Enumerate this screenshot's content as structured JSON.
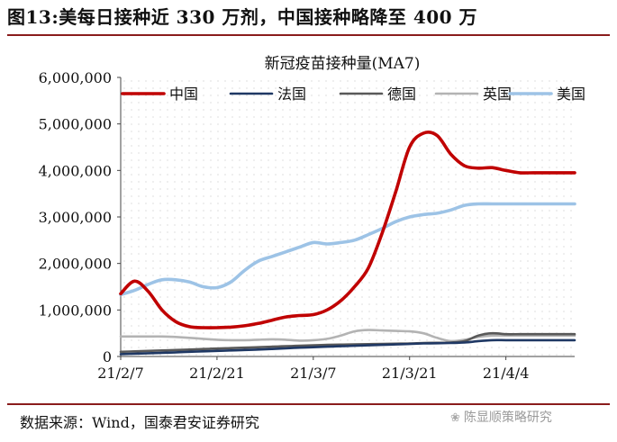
{
  "figure_title": "图13:美每日接种近 330 万剂，中国接种略降至 400 万",
  "source_text": "数据来源：Wind，国泰君安证券研究",
  "watermark_text": "陈显顺策略研究",
  "chart_data": {
    "type": "line",
    "title": "新冠疫苗接种量(MA7)",
    "xlabel": "",
    "ylabel": "",
    "x": [
      "2021-02-07",
      "2021-02-09",
      "2021-02-11",
      "2021-02-13",
      "2021-02-15",
      "2021-02-17",
      "2021-02-19",
      "2021-02-21",
      "2021-02-23",
      "2021-02-25",
      "2021-02-27",
      "2021-03-01",
      "2021-03-03",
      "2021-03-05",
      "2021-03-07",
      "2021-03-09",
      "2021-03-11",
      "2021-03-13",
      "2021-03-15",
      "2021-03-17",
      "2021-03-19",
      "2021-03-21",
      "2021-03-23",
      "2021-03-25",
      "2021-03-27",
      "2021-03-29",
      "2021-03-31",
      "2021-04-02",
      "2021-04-04",
      "2021-04-06",
      "2021-04-08",
      "2021-04-10",
      "2021-04-12",
      "2021-04-14"
    ],
    "xticks": [
      "21/2/7",
      "21/2/21",
      "21/3/7",
      "21/3/21",
      "21/4/4"
    ],
    "ylim": [
      0,
      6000000
    ],
    "yticks": [
      "0",
      "1,000,000",
      "2,000,000",
      "3,000,000",
      "4,000,000",
      "5,000,000",
      "6,000,000"
    ],
    "legend_position": "top",
    "grid": "dotted background",
    "series": [
      {
        "name": "中国",
        "color": "#c00000",
        "width": 3.6,
        "values": [
          1350000,
          1620000,
          1400000,
          1000000,
          750000,
          640000,
          620000,
          620000,
          630000,
          660000,
          710000,
          780000,
          850000,
          880000,
          900000,
          1000000,
          1200000,
          1500000,
          1900000,
          2650000,
          3550000,
          4500000,
          4800000,
          4750000,
          4350000,
          4100000,
          4050000,
          4060000,
          4000000,
          3950000,
          3950000,
          3950000,
          3950000,
          3950000
        ]
      },
      {
        "name": "法国",
        "color": "#1f3864",
        "width": 2.6,
        "values": [
          50000,
          60000,
          70000,
          80000,
          90000,
          100000,
          110000,
          120000,
          130000,
          140000,
          150000,
          160000,
          175000,
          190000,
          200000,
          210000,
          220000,
          230000,
          240000,
          250000,
          260000,
          270000,
          280000,
          285000,
          290000,
          300000,
          330000,
          350000,
          350000,
          350000,
          350000,
          350000,
          350000,
          350000
        ]
      },
      {
        "name": "德国",
        "color": "#595959",
        "width": 2.6,
        "values": [
          100000,
          110000,
          120000,
          130000,
          140000,
          150000,
          160000,
          170000,
          180000,
          190000,
          200000,
          210000,
          220000,
          230000,
          240000,
          250000,
          255000,
          260000,
          265000,
          270000,
          275000,
          280000,
          290000,
          295000,
          300000,
          330000,
          450000,
          500000,
          480000,
          480000,
          480000,
          480000,
          480000,
          480000
        ]
      },
      {
        "name": "英国",
        "color": "#b3b3b3",
        "width": 2.6,
        "values": [
          430000,
          430000,
          430000,
          430000,
          420000,
          400000,
          380000,
          360000,
          350000,
          350000,
          360000,
          370000,
          360000,
          340000,
          350000,
          380000,
          450000,
          540000,
          570000,
          560000,
          550000,
          540000,
          500000,
          400000,
          330000,
          360000,
          420000,
          450000,
          450000,
          450000,
          450000,
          450000,
          450000,
          450000
        ]
      },
      {
        "name": "美国",
        "color": "#9dc3e6",
        "width": 3.6,
        "values": [
          1330000,
          1420000,
          1550000,
          1650000,
          1650000,
          1600000,
          1500000,
          1480000,
          1600000,
          1850000,
          2050000,
          2150000,
          2250000,
          2350000,
          2450000,
          2420000,
          2450000,
          2500000,
          2620000,
          2750000,
          2900000,
          3000000,
          3050000,
          3080000,
          3150000,
          3250000,
          3280000,
          3280000,
          3280000,
          3280000,
          3280000,
          3280000,
          3280000,
          3280000
        ]
      }
    ]
  }
}
